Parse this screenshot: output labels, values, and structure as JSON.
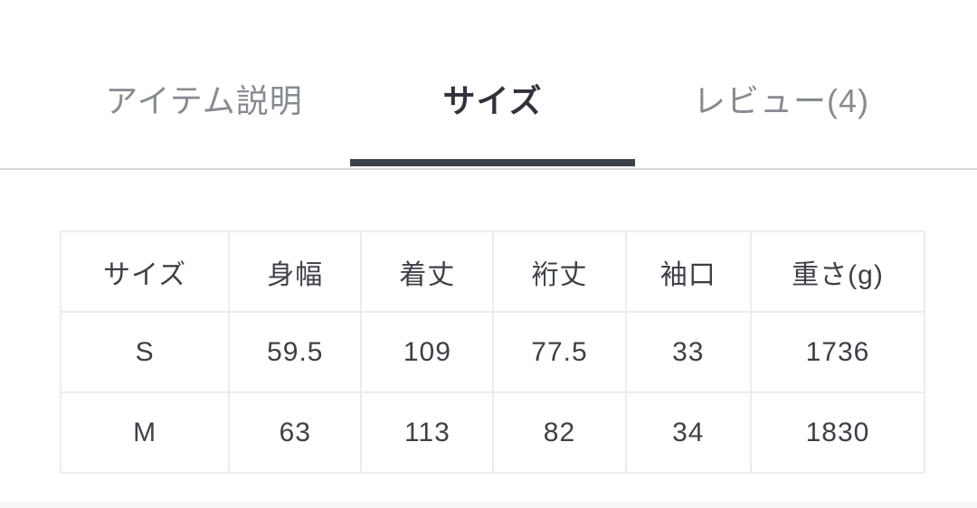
{
  "tabs": {
    "items": [
      {
        "id": "item-description",
        "label": "アイテム説明",
        "active": false
      },
      {
        "id": "size",
        "label": "サイズ",
        "active": true
      },
      {
        "id": "reviews",
        "label": "レビュー(4)",
        "active": false
      }
    ]
  },
  "size_table": {
    "headers": [
      "サイズ",
      "身幅",
      "着丈",
      "裄丈",
      "袖口",
      "重さ(g)"
    ],
    "column_widths": [
      "19.5%",
      "15.3%",
      "15.3%",
      "15.3%",
      "14.5%",
      "20.1%"
    ],
    "rows": [
      {
        "size": "S",
        "values": [
          "S",
          "59.5",
          "109",
          "77.5",
          "33",
          "1736"
        ]
      },
      {
        "size": "M",
        "values": [
          "M",
          "63",
          "113",
          "82",
          "34",
          "1830"
        ]
      }
    ]
  },
  "colors": {
    "tab_active_text": "#30333b",
    "tab_inactive_text": "#878b91",
    "tab_underline": "#3b3f48",
    "tab_divider": "#d9d9da",
    "table_border": "#ececec",
    "table_text": "#3d4046",
    "background": "#ffffff",
    "bottom_strip": "#f7f7f8"
  }
}
